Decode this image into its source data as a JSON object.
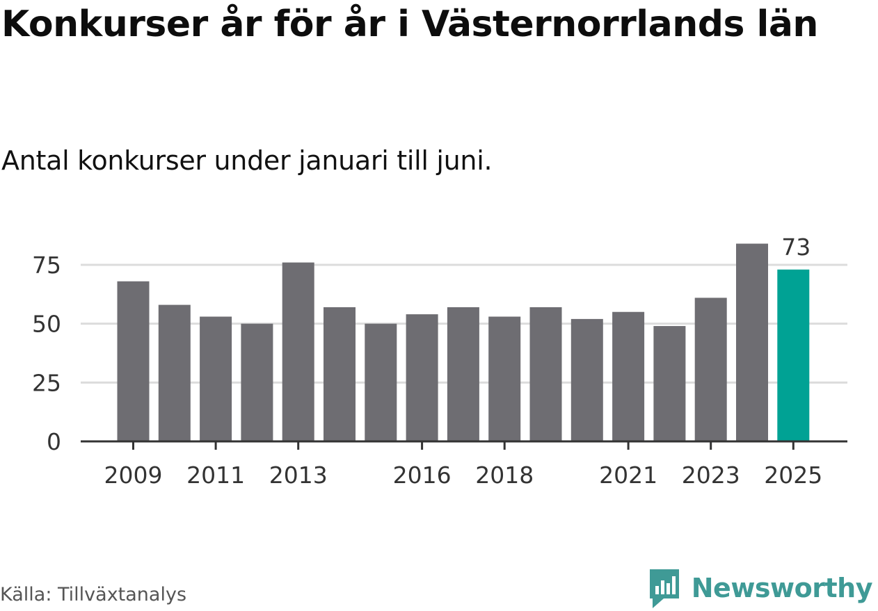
{
  "title": "Konkurser år för år i Västernorrlands län",
  "subtitle": "Antal konkurser under januari till juni.",
  "source": "Källa: Tillväxtanalys",
  "brand": {
    "name": "Newsworthy",
    "icon": "newsworthy-logo-icon",
    "color": "#3f9a96"
  },
  "chart_data": {
    "type": "bar",
    "categories": [
      "2009",
      "2010",
      "2011",
      "2012",
      "2013",
      "2014",
      "2015",
      "2016",
      "2017",
      "2018",
      "2019",
      "2020",
      "2021",
      "2022",
      "2023",
      "2024",
      "2025"
    ],
    "values": [
      68,
      58,
      53,
      50,
      76,
      57,
      50,
      54,
      57,
      53,
      57,
      52,
      55,
      49,
      61,
      84,
      73
    ],
    "x_tick_labels": [
      "2009",
      "2011",
      "2013",
      "2016",
      "2018",
      "2021",
      "2023",
      "2025"
    ],
    "y_ticks": [
      0,
      25,
      50,
      75
    ],
    "ylim": [
      0,
      90
    ],
    "xlabel": "",
    "ylabel": "",
    "grid": true,
    "bar_color": "#6e6d72",
    "highlight": {
      "category": "2025",
      "color": "#00a294",
      "label": "73"
    }
  }
}
